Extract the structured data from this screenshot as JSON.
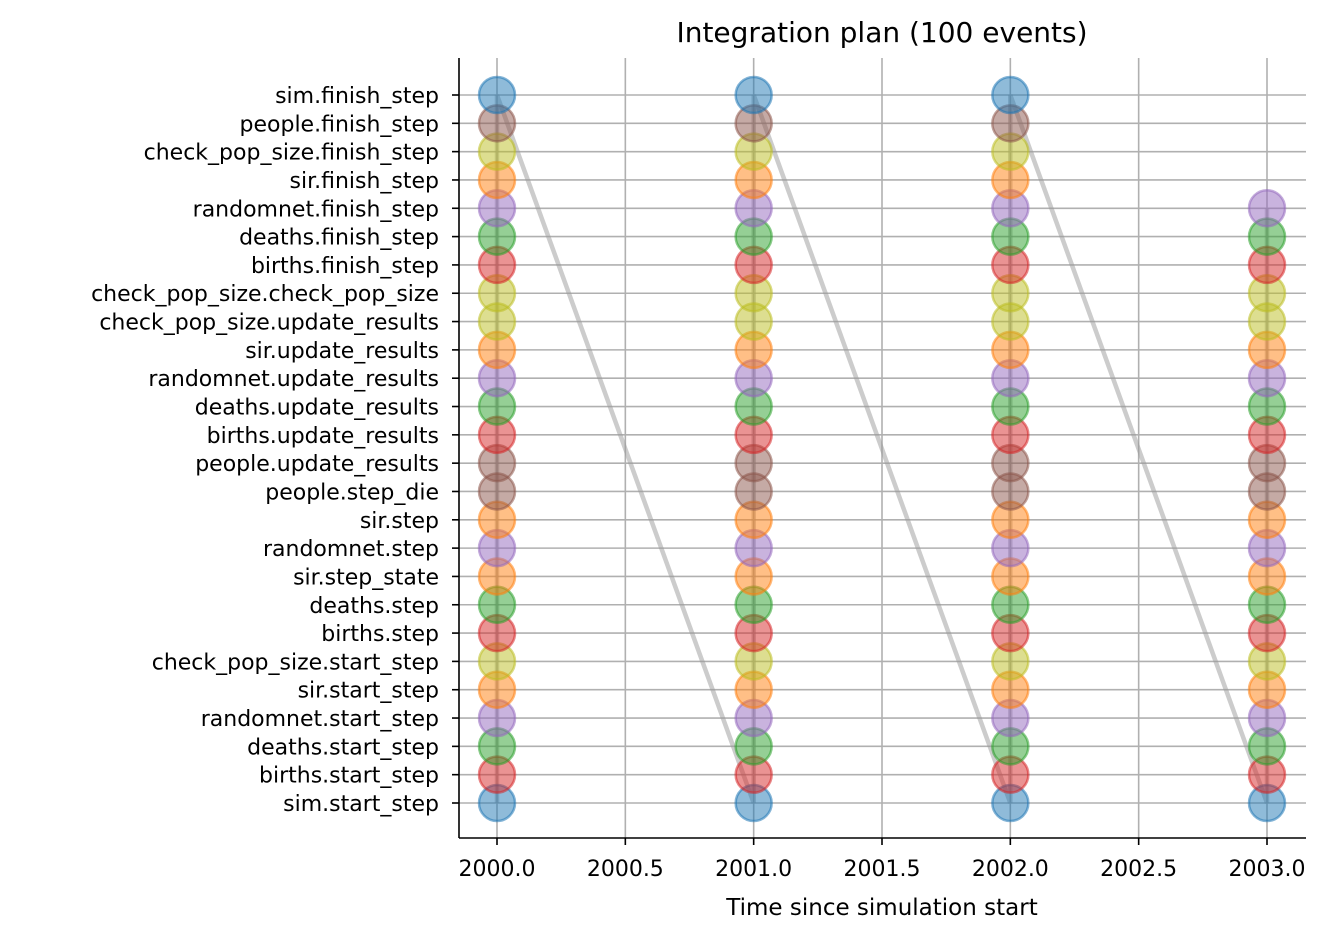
{
  "chart_data": {
    "type": "scatter",
    "title": "Integration plan (100 events)",
    "xlabel": "Time since simulation start",
    "ylabel": "",
    "xlim": [
      1999.855,
      3000.0
    ],
    "x_ticks": [
      2000.0,
      2000.5,
      2001.0,
      2001.5,
      2002.0,
      2002.5,
      2003.0
    ],
    "x_tick_labels": [
      "2000.0",
      "2000.5",
      "2001.0",
      "2001.5",
      "2002.0",
      "2002.5",
      "2003.0"
    ],
    "grid": true,
    "categories": [
      "sim.start_step",
      "births.start_step",
      "deaths.start_step",
      "randomnet.start_step",
      "sir.start_step",
      "check_pop_size.start_step",
      "births.step",
      "deaths.step",
      "sir.step_state",
      "randomnet.step",
      "sir.step",
      "people.step_die",
      "people.update_results",
      "births.update_results",
      "deaths.update_results",
      "randomnet.update_results",
      "sir.update_results",
      "check_pop_size.update_results",
      "check_pop_size.check_pop_size",
      "births.finish_step",
      "deaths.finish_step",
      "randomnet.finish_step",
      "sir.finish_step",
      "check_pop_size.finish_step",
      "people.finish_step",
      "sim.finish_step"
    ],
    "module_colors": {
      "sim": "#1f77b4",
      "people": "#8c564b",
      "check_pop_size": "#bcbd22",
      "sir": "#ff7f0e",
      "randomnet": "#9467bd",
      "deaths": "#2ca02c",
      "births": "#d62728"
    },
    "time_steps": [
      {
        "x": 2000.0,
        "events": [
          "sim.start_step",
          "births.start_step",
          "deaths.start_step",
          "randomnet.start_step",
          "sir.start_step",
          "check_pop_size.start_step",
          "births.step",
          "deaths.step",
          "sir.step_state",
          "randomnet.step",
          "sir.step",
          "people.step_die",
          "people.update_results",
          "births.update_results",
          "deaths.update_results",
          "randomnet.update_results",
          "sir.update_results",
          "check_pop_size.update_results",
          "check_pop_size.check_pop_size",
          "births.finish_step",
          "deaths.finish_step",
          "randomnet.finish_step",
          "sir.finish_step",
          "check_pop_size.finish_step",
          "people.finish_step",
          "sim.finish_step"
        ]
      },
      {
        "x": 2001.0,
        "events": [
          "sim.start_step",
          "births.start_step",
          "deaths.start_step",
          "randomnet.start_step",
          "sir.start_step",
          "check_pop_size.start_step",
          "births.step",
          "deaths.step",
          "sir.step_state",
          "randomnet.step",
          "sir.step",
          "people.step_die",
          "people.update_results",
          "births.update_results",
          "deaths.update_results",
          "randomnet.update_results",
          "sir.update_results",
          "check_pop_size.update_results",
          "check_pop_size.check_pop_size",
          "births.finish_step",
          "deaths.finish_step",
          "randomnet.finish_step",
          "sir.finish_step",
          "check_pop_size.finish_step",
          "people.finish_step",
          "sim.finish_step"
        ]
      },
      {
        "x": 2002.0,
        "events": [
          "sim.start_step",
          "births.start_step",
          "deaths.start_step",
          "randomnet.start_step",
          "sir.start_step",
          "check_pop_size.start_step",
          "births.step",
          "deaths.step",
          "sir.step_state",
          "randomnet.step",
          "sir.step",
          "people.step_die",
          "people.update_results",
          "births.update_results",
          "deaths.update_results",
          "randomnet.update_results",
          "sir.update_results",
          "check_pop_size.update_results",
          "check_pop_size.check_pop_size",
          "births.finish_step",
          "deaths.finish_step",
          "randomnet.finish_step",
          "sir.finish_step",
          "check_pop_size.finish_step",
          "people.finish_step",
          "sim.finish_step"
        ]
      },
      {
        "x": 2003.0,
        "events": [
          "sim.start_step",
          "births.start_step",
          "deaths.start_step",
          "randomnet.start_step",
          "sir.start_step",
          "check_pop_size.start_step",
          "births.step",
          "deaths.step",
          "sir.step_state",
          "randomnet.step",
          "sir.step",
          "people.step_die",
          "people.update_results",
          "births.update_results",
          "deaths.update_results",
          "randomnet.update_results",
          "sir.update_results",
          "check_pop_size.update_results",
          "check_pop_size.check_pop_size",
          "births.finish_step",
          "deaths.finish_step",
          "randomnet.finish_step"
        ]
      }
    ]
  }
}
